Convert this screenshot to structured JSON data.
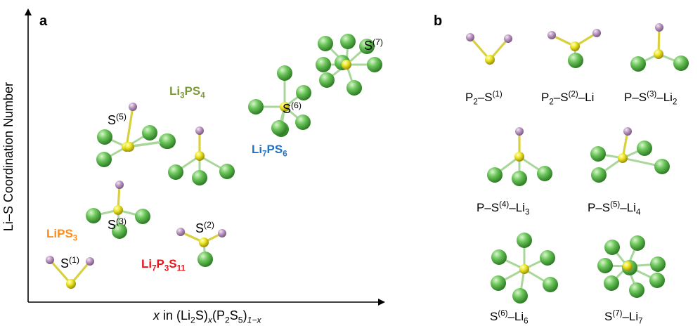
{
  "panel_a": {
    "label": "a",
    "y_axis_label": "Li–S Coordination Number",
    "x_axis_label": {
      "x": "x",
      "in": " in (Li",
      "li_sub": "2",
      "s1": "S)",
      "x_sub": "x",
      "p": "(P",
      "p_sub": "2",
      "s": "S",
      "s_sub": "5",
      "close": ")",
      "exp": "1−x"
    },
    "compounds": {
      "lips3": {
        "base": "LiPS",
        "sub": "3",
        "color": "#FF8C1A"
      },
      "li3ps4": {
        "base1": "Li",
        "sub1": "3",
        "base2": "PS",
        "sub2": "4",
        "color": "#7D9A3A"
      },
      "li7ps6": {
        "base1": "Li",
        "sub1": "7",
        "base2": "PS",
        "sub2": "6",
        "color": "#1F73C4"
      },
      "li7p3s11": {
        "base1": "Li",
        "sub1": "7",
        "base2": "P",
        "sub2": "3",
        "base3": "S",
        "sub3": "11",
        "color": "#E8141B"
      }
    },
    "sites": [
      {
        "base": "S",
        "sup": "(1)"
      },
      {
        "base": "S",
        "sup": "(2)"
      },
      {
        "base": "S",
        "sup": "(3)"
      },
      {
        "base": "S",
        "sup": "(5)"
      },
      {
        "base": "S",
        "sup": "(6)"
      },
      {
        "base": "S",
        "sup": "(7)"
      }
    ]
  },
  "panel_b": {
    "label": "b",
    "captions": [
      {
        "t1": "P",
        "s1": "2",
        "t2": "–S",
        "p1": "(1)",
        "t3": "",
        "s2": ""
      },
      {
        "t1": "P",
        "s1": "2",
        "t2": "–S",
        "p1": "(2)",
        "t3": "–Li",
        "s2": ""
      },
      {
        "t1": "P",
        "s1": "",
        "t2": "–S",
        "p1": "(3)",
        "t3": "–Li",
        "s2": "2"
      },
      {
        "t1": "P",
        "s1": "",
        "t2": "–S",
        "p1": "(4)",
        "t3": "–Li",
        "s2": "3"
      },
      {
        "t1": "P",
        "s1": "",
        "t2": "–S",
        "p1": "(5)",
        "t3": "–Li",
        "s2": "4"
      },
      {
        "t1": "",
        "s1": "",
        "t2": "S",
        "p1": "(6)",
        "t3": "–Li",
        "s2": "6"
      },
      {
        "t1": "",
        "s1": "",
        "t2": "S",
        "p1": "(7)",
        "t3": "–Li",
        "s2": "7"
      }
    ]
  },
  "colors": {
    "sulfur": "#E8E21A",
    "phosphorus": "#B993C0",
    "lithium": "#5FC050",
    "bond_s": "#D9D040",
    "bond_li": "#A9D69A"
  }
}
